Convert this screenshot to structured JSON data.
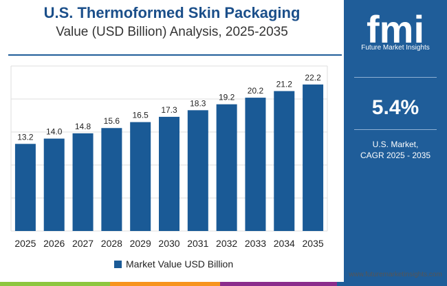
{
  "chart_data": {
    "type": "bar",
    "title": "U.S. Thermoformed Skin Packaging",
    "subtitle": "Value (USD Billion) Analysis, 2025-2035",
    "categories": [
      "2025",
      "2026",
      "2027",
      "2028",
      "2029",
      "2030",
      "2031",
      "2032",
      "2033",
      "2034",
      "2035"
    ],
    "series": [
      {
        "name": "Market Value USD Billion",
        "values": [
          13.2,
          14.0,
          14.8,
          15.6,
          16.5,
          17.3,
          18.3,
          19.2,
          20.2,
          21.2,
          22.2
        ],
        "labels": [
          "13.2",
          "14.0",
          "14.8",
          "15.6",
          "16.5",
          "17.3",
          "18.3",
          "19.2",
          "20.2",
          "21.2",
          "22.2"
        ]
      }
    ],
    "xlabel": "",
    "ylabel": "",
    "ylim": [
      0,
      25
    ],
    "grid": true,
    "legend_position": "bottom-center",
    "bar_color": "#1a5a96"
  },
  "header": {
    "title": "U.S. Thermoformed Skin Packaging",
    "subtitle": "Value (USD Billion) Analysis, 2025-2035"
  },
  "legend": {
    "label": "Market Value USD Billion"
  },
  "side_panel": {
    "logo_text": "fmi",
    "logo_tagline": "Future Market Insights",
    "cagr_value": "5.4%",
    "cagr_label_line1": "U.S. Market,",
    "cagr_label_line2": "CAGR 2025 - 2035",
    "background_color": "#1f5d99"
  },
  "footer": {
    "website": "www.futuremarketinsights.com"
  },
  "colors": {
    "strip": [
      "#8dc63f",
      "#f7941d",
      "#8b2c8c",
      "#1f5d99"
    ]
  }
}
